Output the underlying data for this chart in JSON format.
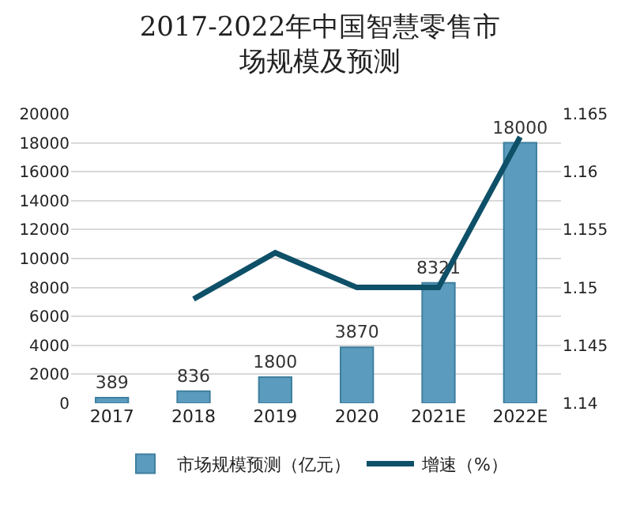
{
  "chart_data": {
    "type": "bar",
    "title": "2017-2022年中国智慧零售市场规模及预测",
    "categories": [
      "2017",
      "2018",
      "2019",
      "2020",
      "2021E",
      "2022E"
    ],
    "series": [
      {
        "name": "市场规模预测（亿元）",
        "color": "#5b9bbd",
        "values": [
          389,
          836,
          1800,
          3870,
          8321,
          18000
        ],
        "data_labels": true
      },
      {
        "name": "增速（%）",
        "type": "line",
        "axis": "y2",
        "color": "#0e5068",
        "values": [
          null,
          1.149,
          1.153,
          1.15,
          1.15,
          1.163
        ]
      }
    ],
    "ylim": [
      0,
      20000
    ],
    "yticks": [
      0,
      2000,
      4000,
      6000,
      8000,
      10000,
      12000,
      14000,
      16000,
      18000,
      20000
    ],
    "y2lim": [
      1.14,
      1.165
    ],
    "y2ticks": [
      1.14,
      1.145,
      1.15,
      1.155,
      1.16,
      1.165
    ],
    "grid": "y",
    "legend": "bottom"
  }
}
